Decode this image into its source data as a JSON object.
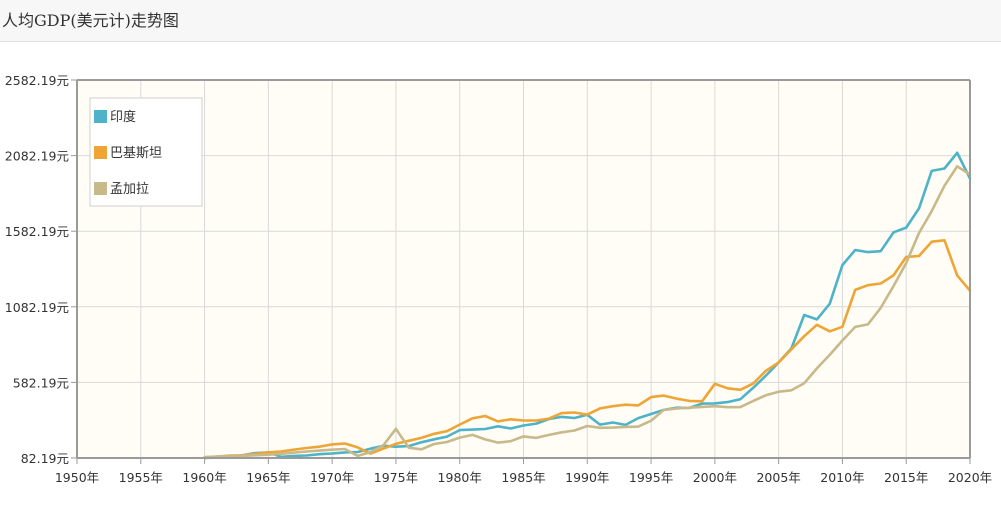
{
  "header": {
    "title": "人均GDP(美元计)走势图"
  },
  "colors": {
    "plot_bg": "#fffdf6",
    "grid": "#d9d9d9",
    "axis": "#9a9a9a"
  },
  "chart_data": {
    "type": "line",
    "title": "人均GDP(美元计)走势图",
    "xlabel": "",
    "ylabel": "",
    "xlim": [
      1950,
      2020
    ],
    "ylim": [
      82.19,
      2582.19
    ],
    "x_ticks": [
      "1950年",
      "1955年",
      "1960年",
      "1965年",
      "1970年",
      "1975年",
      "1980年",
      "1985年",
      "1990年",
      "1995年",
      "2000年",
      "2005年",
      "2010年",
      "2015年",
      "2020年"
    ],
    "y_ticks": [
      "82.19元",
      "582.19元",
      "1082.19元",
      "1582.19元",
      "2082.19元",
      "2582.19元"
    ],
    "grid": true,
    "legend_position": "top-left",
    "series": [
      {
        "name": "印度",
        "color": "#4eb3c8",
        "x": [
          1960,
          1961,
          1962,
          1963,
          1964,
          1965,
          1966,
          1967,
          1968,
          1969,
          1970,
          1971,
          1972,
          1973,
          1974,
          1975,
          1976,
          1977,
          1978,
          1979,
          1980,
          1981,
          1982,
          1983,
          1984,
          1985,
          1986,
          1987,
          1988,
          1989,
          1990,
          1991,
          1992,
          1993,
          1994,
          1995,
          1996,
          1997,
          1998,
          1999,
          2000,
          2001,
          2002,
          2003,
          2004,
          2005,
          2006,
          2007,
          2008,
          2009,
          2010,
          2011,
          2012,
          2013,
          2014,
          2015,
          2016,
          2017,
          2018,
          2019,
          2020
        ],
        "y": [
          82,
          85,
          90,
          101,
          115,
          119,
          90,
          96,
          99,
          107,
          112,
          119,
          122,
          144,
          163,
          157,
          161,
          186,
          206,
          224,
          267,
          270,
          274,
          292,
          277,
          297,
          310,
          340,
          354,
          347,
          368,
          303,
          317,
          301,
          346,
          373,
          400,
          415,
          413,
          442,
          443,
          452,
          471,
          546,
          627,
          714,
          807,
          1028,
          999,
          1102,
          1358,
          1458,
          1444,
          1450,
          1574,
          1606,
          1733,
          1981,
          1997,
          2101,
          1931
        ]
      },
      {
        "name": "巴基斯坦",
        "color": "#eea535",
        "x": [
          1960,
          1961,
          1962,
          1963,
          1964,
          1965,
          1966,
          1967,
          1968,
          1969,
          1970,
          1971,
          1972,
          1973,
          1974,
          1975,
          1976,
          1977,
          1978,
          1979,
          1980,
          1981,
          1982,
          1983,
          1984,
          1985,
          1986,
          1987,
          1988,
          1989,
          1990,
          1991,
          1992,
          1993,
          1994,
          1995,
          1996,
          1997,
          1998,
          1999,
          2000,
          2001,
          2002,
          2003,
          2004,
          2005,
          2006,
          2007,
          2008,
          2009,
          2010,
          2011,
          2012,
          2013,
          2014,
          2015,
          2016,
          2017,
          2018,
          2019,
          2020
        ],
        "y": [
          82,
          92,
          98,
          100,
          109,
          120,
          125,
          138,
          148,
          157,
          172,
          178,
          152,
          111,
          144,
          176,
          196,
          215,
          242,
          260,
          303,
          345,
          360,
          324,
          338,
          330,
          330,
          343,
          379,
          383,
          369,
          410,
          425,
          435,
          430,
          485,
          495,
          475,
          460,
          457,
          573,
          543,
          533,
          574,
          659,
          714,
          801,
          888,
          963,
          920,
          950,
          1194,
          1225,
          1236,
          1290,
          1412,
          1418,
          1513,
          1522,
          1290,
          1189
        ]
      },
      {
        "name": "孟加拉",
        "color": "#c8b98a",
        "x": [
          1960,
          1961,
          1962,
          1963,
          1964,
          1965,
          1966,
          1967,
          1968,
          1969,
          1970,
          1971,
          1972,
          1973,
          1974,
          1975,
          1976,
          1977,
          1978,
          1979,
          1980,
          1981,
          1982,
          1983,
          1984,
          1985,
          1986,
          1987,
          1988,
          1989,
          1990,
          1991,
          1992,
          1993,
          1994,
          1995,
          1996,
          1997,
          1998,
          1999,
          2000,
          2001,
          2002,
          2003,
          2004,
          2005,
          2006,
          2007,
          2008,
          2009,
          2010,
          2011,
          2012,
          2013,
          2014,
          2015,
          2016,
          2017,
          2018,
          2019,
          2020
        ],
        "y": [
          89,
          92,
          96,
          97,
          100,
          104,
          110,
          118,
          125,
          131,
          137,
          142,
          96,
          121,
          165,
          275,
          150,
          140,
          175,
          188,
          217,
          235,
          205,
          184,
          193,
          225,
          215,
          235,
          252,
          264,
          294,
          282,
          283,
          288,
          290,
          329,
          400,
          410,
          415,
          420,
          425,
          418,
          419,
          459,
          497,
          521,
          530,
          577,
          675,
          764,
          859,
          949,
          966,
          1075,
          1219,
          1372,
          1570,
          1715,
          1883,
          2011,
          1957
        ]
      }
    ]
  }
}
